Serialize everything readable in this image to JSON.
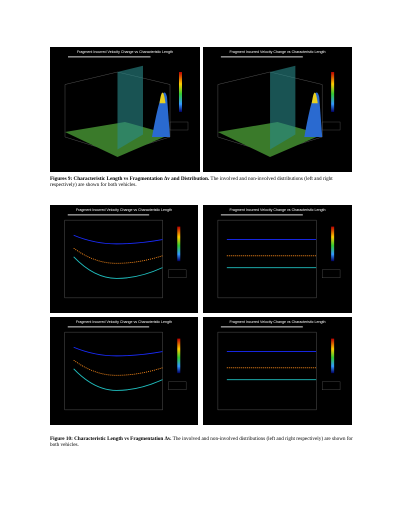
{
  "figure9": {
    "panels": [
      {
        "title": "Fragment Incurred Velocity Change vs Characteristic Length"
      },
      {
        "title": "Fragment Incurred Velocity Change vs Characteristic Length"
      }
    ],
    "caption_label": "Figures 9: Characteristic Length vs Fragmentation Δv and Distribution.",
    "caption_text": "The involved and non-involved distributions (left and right respectively) are shown for both vehicles."
  },
  "figure10": {
    "panels": [
      {
        "title": "Fragment Incurred Velocity Change vs Characteristic Length"
      },
      {
        "title": "Fragment Incurred Velocity Change vs Characteristic Length"
      },
      {
        "title": "Fragment Incurred Velocity Change vs Characteristic Length"
      },
      {
        "title": "Fragment Incurred Velocity Change vs Characteristic Length"
      }
    ],
    "caption_label": "Figure 10: Characteristic Length vs Fragmentation Δv.",
    "caption_text": "The involved and non-involved distributions (left and right respectively) are shown for both vehicles."
  }
}
